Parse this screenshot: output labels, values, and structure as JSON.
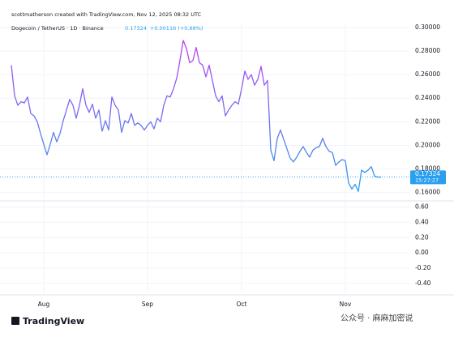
{
  "header": {
    "credit": "scottmatherson created with TradingView.com, Nov 12, 2025 08:32 UTC",
    "symbol": "Dogecoin / TetherUS · 1D · Binance",
    "change": "+0.00116 (+0.68%)",
    "countdown": "15:27:27"
  },
  "footer": {
    "logo": "TradingView",
    "watermark": "公众号 · 麻麻加密说"
  },
  "chart_data": [
    {
      "type": "line",
      "gradient": [
        "#c23cf2",
        "#2a9ff0"
      ],
      "last_line_color": "#2a9ff0",
      "grid": true,
      "categories": [
        null,
        null,
        null,
        null,
        null,
        null,
        null,
        null,
        null,
        null,
        "Aug",
        null,
        null,
        null,
        null,
        null,
        null,
        null,
        null,
        null,
        null,
        null,
        null,
        null,
        null,
        null,
        null,
        null,
        null,
        null,
        null,
        null,
        null,
        null,
        null,
        null,
        null,
        null,
        null,
        null,
        null,
        null,
        "Sep",
        null,
        null,
        null,
        null,
        null,
        null,
        null,
        null,
        null,
        null,
        null,
        null,
        null,
        null,
        null,
        null,
        null,
        null,
        null,
        null,
        null,
        null,
        null,
        null,
        null,
        null,
        null,
        null,
        "Oct",
        null,
        null,
        null,
        null,
        null,
        null,
        null,
        null,
        null,
        null,
        null,
        null,
        null,
        null,
        null,
        null,
        null,
        null,
        null,
        null,
        null,
        null,
        null,
        null,
        null,
        null,
        null,
        null,
        null,
        null,
        null,
        "Nov",
        null,
        null,
        null,
        null,
        null,
        null,
        null,
        null,
        null,
        null,
        null
      ],
      "values": [
        0.268,
        0.242,
        0.234,
        0.237,
        0.236,
        0.241,
        0.227,
        0.225,
        0.22,
        0.21,
        0.201,
        0.192,
        0.201,
        0.211,
        0.203,
        0.21,
        0.221,
        0.23,
        0.239,
        0.234,
        0.223,
        0.234,
        0.248,
        0.234,
        0.228,
        0.235,
        0.223,
        0.23,
        0.212,
        0.221,
        0.213,
        0.241,
        0.234,
        0.23,
        0.211,
        0.221,
        0.219,
        0.227,
        0.217,
        0.219,
        0.217,
        0.213,
        0.217,
        0.22,
        0.214,
        0.223,
        0.22,
        0.234,
        0.242,
        0.241,
        0.248,
        0.257,
        0.272,
        0.289,
        0.282,
        0.27,
        0.272,
        0.283,
        0.27,
        0.268,
        0.258,
        0.268,
        0.255,
        0.242,
        0.237,
        0.242,
        0.225,
        0.23,
        0.234,
        0.237,
        0.235,
        0.248,
        0.263,
        0.256,
        0.26,
        0.251,
        0.256,
        0.267,
        0.251,
        0.255,
        0.196,
        0.187,
        0.206,
        0.213,
        0.205,
        0.197,
        0.189,
        0.186,
        0.19,
        0.195,
        0.199,
        0.194,
        0.19,
        0.196,
        0.198,
        0.199,
        0.206,
        0.199,
        0.195,
        0.194,
        0.183,
        0.186,
        0.188,
        0.187,
        0.168,
        0.163,
        0.167,
        0.161,
        0.179,
        0.177,
        0.179,
        0.182,
        0.174,
        0.173,
        0.17324
      ],
      "ylim": [
        0.155,
        0.304
      ],
      "yticks": [
        {
          "value": 0.3,
          "label": "0.30000"
        },
        {
          "value": 0.28,
          "label": "0.28000"
        },
        {
          "value": 0.26,
          "label": "0.26000"
        },
        {
          "value": 0.24,
          "label": "0.24000"
        },
        {
          "value": 0.22,
          "label": "0.22000"
        },
        {
          "value": 0.2,
          "label": "0.20000"
        },
        {
          "value": 0.18,
          "label": "0.18000"
        },
        {
          "value": 0.16,
          "label": "0.16000"
        }
      ]
    },
    {
      "type": "line",
      "grid": true,
      "ylim": [
        -0.53,
        0.67
      ],
      "yticks": [
        {
          "value": 0.6,
          "label": "0.60"
        },
        {
          "value": 0.4,
          "label": "0.40"
        },
        {
          "value": 0.2,
          "label": "0.20"
        },
        {
          "value": 0,
          "label": "0.00"
        },
        {
          "value": -0.2,
          "label": "-0.20"
        },
        {
          "value": -0.4,
          "label": "-0.40"
        }
      ]
    }
  ]
}
